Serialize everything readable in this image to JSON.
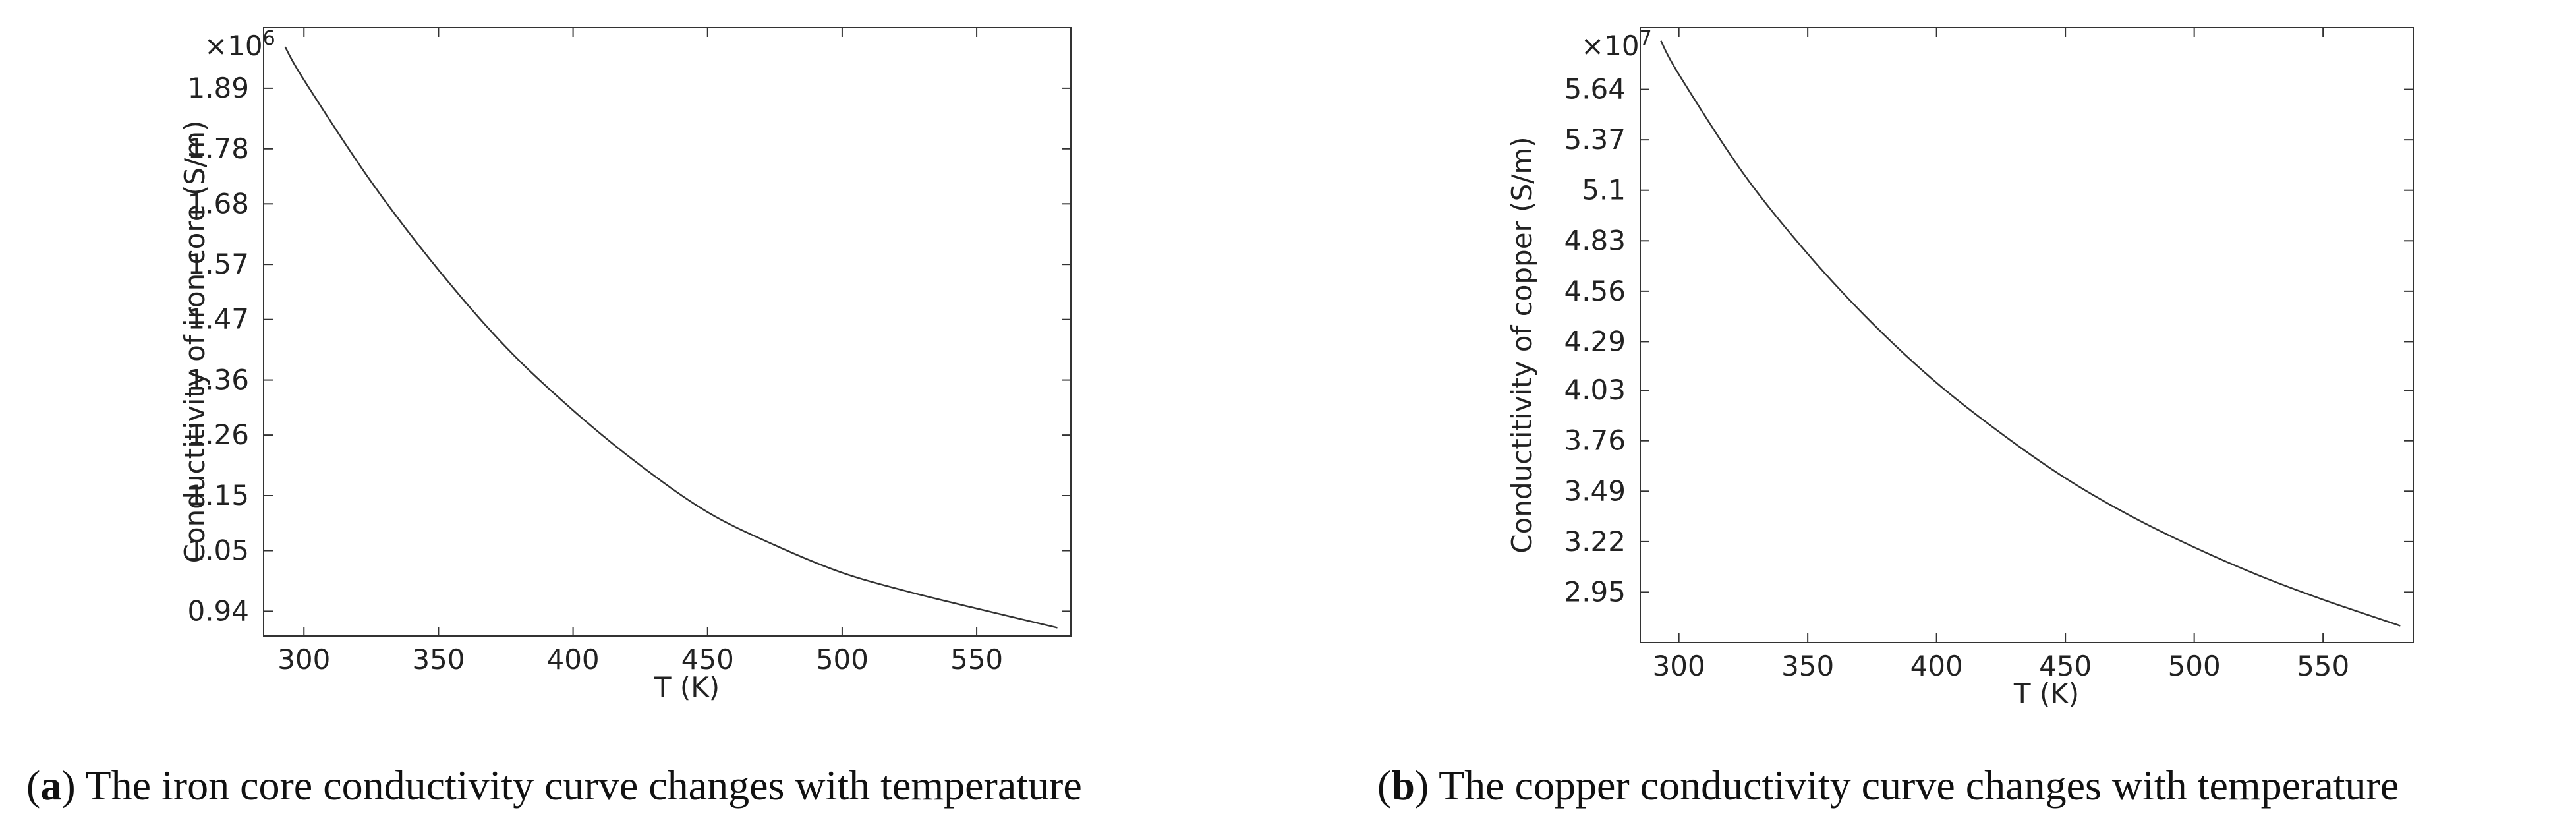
{
  "chart_data": [
    {
      "type": "line",
      "xlabel": "T (K)",
      "ylabel": "Conductitivity of iron core (S/m)",
      "y_multiplier": "×10",
      "y_multiplier_exp": "6",
      "xlim": [
        285,
        585
      ],
      "ylim": [
        0.895,
        2.0
      ],
      "xticks": [
        300,
        350,
        400,
        450,
        500,
        550
      ],
      "yticks": [
        0.94,
        1.05,
        1.15,
        1.26,
        1.36,
        1.47,
        1.57,
        1.68,
        1.78,
        1.89
      ],
      "grid": false,
      "series": [
        {
          "x": [
            293,
            300,
            325,
            350,
            375,
            400,
            425,
            450,
            475,
            500,
            525,
            550,
            580
          ],
          "y": [
            1.965,
            1.905,
            1.72,
            1.56,
            1.42,
            1.305,
            1.205,
            1.12,
            1.06,
            1.01,
            0.975,
            0.945,
            0.91
          ]
        }
      ],
      "caption_letter": "a",
      "caption_text": " The iron core conductivity curve changes with temperature"
    },
    {
      "type": "line",
      "xlabel": "T (K)",
      "ylabel": "Conductitivity of copper (S/m)",
      "y_multiplier": "×10",
      "y_multiplier_exp": "7",
      "xlim": [
        285,
        585
      ],
      "ylim": [
        2.68,
        5.97
      ],
      "xticks": [
        300,
        350,
        400,
        450,
        500,
        550
      ],
      "yticks": [
        2.95,
        3.22,
        3.49,
        3.76,
        4.03,
        4.29,
        4.56,
        4.83,
        5.1,
        5.37,
        5.64
      ],
      "grid": false,
      "series": [
        {
          "x": [
            293,
            300,
            325,
            350,
            375,
            400,
            425,
            450,
            475,
            500,
            525,
            550,
            580
          ],
          "y": [
            5.9,
            5.72,
            5.19,
            4.76,
            4.39,
            4.07,
            3.8,
            3.56,
            3.36,
            3.19,
            3.04,
            2.91,
            2.77
          ]
        }
      ],
      "caption_letter": "b",
      "caption_text": " The copper conductivity curve changes with temperature"
    }
  ]
}
